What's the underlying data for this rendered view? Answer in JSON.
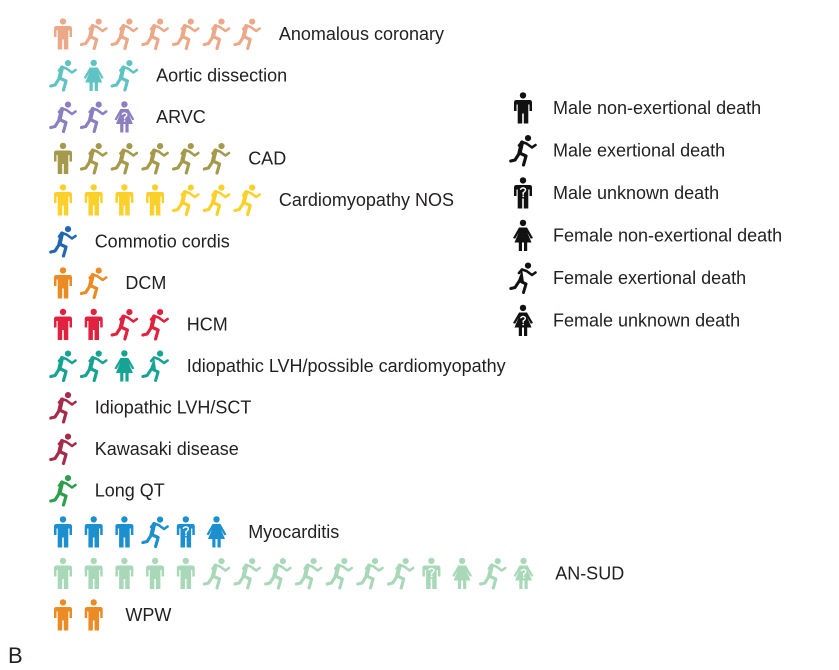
{
  "panel_label": "B",
  "chart_data": {
    "type": "pictogram",
    "title": "",
    "description_units": "one icon = one death",
    "categories": [
      {
        "label": "Anomalous coronary",
        "color": "#eba98a",
        "icons": [
          "mn",
          "me",
          "me",
          "me",
          "me",
          "me",
          "me"
        ]
      },
      {
        "label": "Aortic dissection",
        "color": "#5fc3c3",
        "icons": [
          "me",
          "fn",
          "me"
        ]
      },
      {
        "label": "ARVC",
        "color": "#8c7fc0",
        "icons": [
          "me",
          "me",
          "fu"
        ]
      },
      {
        "label": "CAD",
        "color": "#a59a4c",
        "icons": [
          "mn",
          "me",
          "me",
          "me",
          "me",
          "me"
        ]
      },
      {
        "label": "Cardiomyopathy NOS",
        "color": "#fcd02b",
        "icons": [
          "mn",
          "mn",
          "mn",
          "mn",
          "me",
          "me",
          "me"
        ]
      },
      {
        "label": "Commotio cordis",
        "color": "#2367b0",
        "icons": [
          "me"
        ]
      },
      {
        "label": "DCM",
        "color": "#ec8a24",
        "icons": [
          "mn",
          "me"
        ]
      },
      {
        "label": "HCM",
        "color": "#e0223f",
        "icons": [
          "mn",
          "mn",
          "me",
          "me"
        ]
      },
      {
        "label": "Idiopathic LVH/possible cardiomyopathy",
        "color": "#16a394",
        "icons": [
          "me",
          "me",
          "fn",
          "fe"
        ]
      },
      {
        "label": "Idiopathic LVH/SCT",
        "color": "#a62b4b",
        "icons": [
          "me"
        ]
      },
      {
        "label": "Kawasaki disease",
        "color": "#a62b4b",
        "icons": [
          "me"
        ]
      },
      {
        "label": "Long QT",
        "color": "#2e9e4c",
        "icons": [
          "me"
        ]
      },
      {
        "label": "Myocarditis",
        "color": "#1c8fce",
        "icons": [
          "mn",
          "mn",
          "mn",
          "me",
          "mu",
          "fn"
        ]
      },
      {
        "label": "AN-SUD",
        "color": "#a9d8b8",
        "icons": [
          "mn",
          "mn",
          "mn",
          "mn",
          "mn",
          "me",
          "me",
          "me",
          "me",
          "me",
          "me",
          "me",
          "mu",
          "fn",
          "me",
          "fu"
        ]
      },
      {
        "label": "WPW",
        "color": "#ec8a24",
        "icons": [
          "mn",
          "mn"
        ]
      }
    ],
    "legend": {
      "position": "right",
      "color": "#111111",
      "items": [
        {
          "key": "mn",
          "label": "Male non-exertional death"
        },
        {
          "key": "me",
          "label": "Male exertional death"
        },
        {
          "key": "mu",
          "label": "Male unknown death"
        },
        {
          "key": "fn",
          "label": "Female non-exertional death"
        },
        {
          "key": "fe",
          "label": "Female exertional death"
        },
        {
          "key": "fu",
          "label": "Female unknown death"
        }
      ]
    }
  }
}
